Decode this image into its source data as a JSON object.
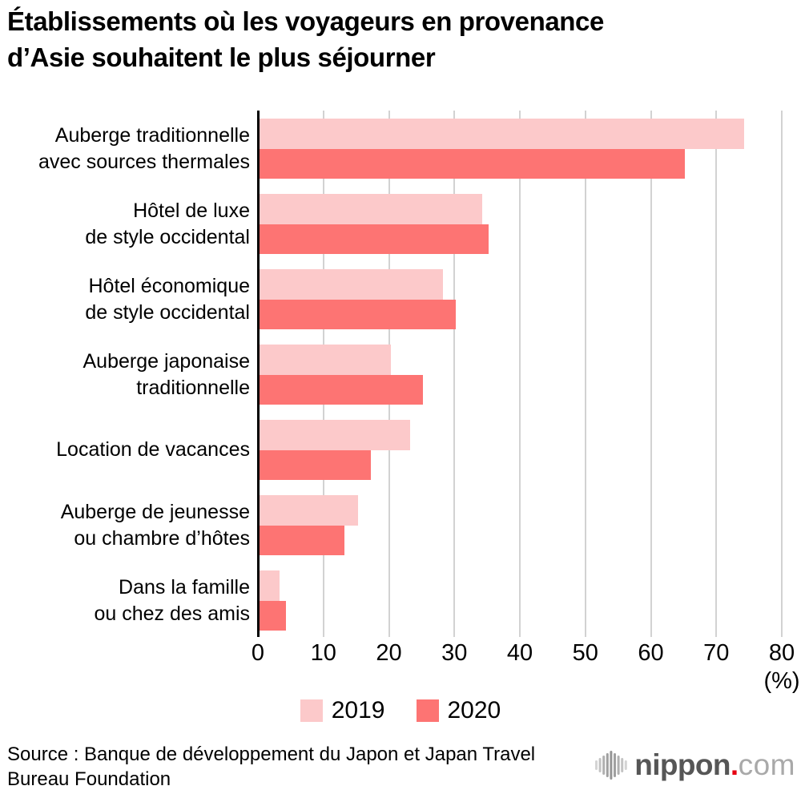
{
  "title": {
    "line1": "Établissements où les voyageurs en provenance",
    "line2": "d’Asie souhaitent le plus séjourner"
  },
  "chart_data": {
    "type": "bar",
    "orientation": "horizontal",
    "title": "Établissements où les voyageurs en provenance d’Asie souhaitent le plus séjourner",
    "unit_label": "(%)",
    "axis": {
      "min": 0,
      "max": 80,
      "ticks": [
        0,
        10,
        20,
        30,
        40,
        50,
        60,
        70,
        80
      ]
    },
    "grid": true,
    "grid_color": "#d2d2d2",
    "axis_color": "#000000",
    "legend_position": "bottom",
    "categories": [
      {
        "label": "Auberge traditionnelle avec sources thermales",
        "lines": [
          "Auberge traditionnelle",
          "avec sources thermales"
        ]
      },
      {
        "label": "Hôtel de luxe de style occidental",
        "lines": [
          "Hôtel de luxe",
          "de style occidental"
        ]
      },
      {
        "label": "Hôtel économique de style occidental",
        "lines": [
          "Hôtel économique",
          "de style occidental"
        ]
      },
      {
        "label": "Auberge japonaise traditionnelle",
        "lines": [
          "Auberge japonaise",
          "traditionnelle"
        ]
      },
      {
        "label": "Location de vacances",
        "lines": [
          "Location de vacances"
        ]
      },
      {
        "label": "Auberge de jeunesse ou chambre d’hôtes",
        "lines": [
          "Auberge de jeunesse",
          "ou chambre d’hôtes"
        ]
      },
      {
        "label": "Dans la famille ou chez des amis",
        "lines": [
          "Dans la famille",
          "ou chez des amis"
        ]
      }
    ],
    "series": [
      {
        "name": "2019",
        "color": "#fcc9ca",
        "values": [
          74,
          34,
          28,
          20,
          23,
          15,
          3
        ]
      },
      {
        "name": "2020",
        "color": "#fd7473",
        "values": [
          65,
          35,
          30,
          25,
          17,
          13,
          4
        ]
      }
    ]
  },
  "legend": {
    "items": [
      {
        "label": "2019",
        "color": "#fcc9ca"
      },
      {
        "label": "2020",
        "color": "#fd7473"
      }
    ]
  },
  "source": {
    "line1": "Source : Banque de développement du Japon et Japan Travel",
    "line2": "Bureau Foundation"
  },
  "logo": {
    "name_part": "nippon",
    "dot": ".",
    "tld_part": "com",
    "dot_color": "#e60012",
    "icon": "waveform-icon"
  }
}
